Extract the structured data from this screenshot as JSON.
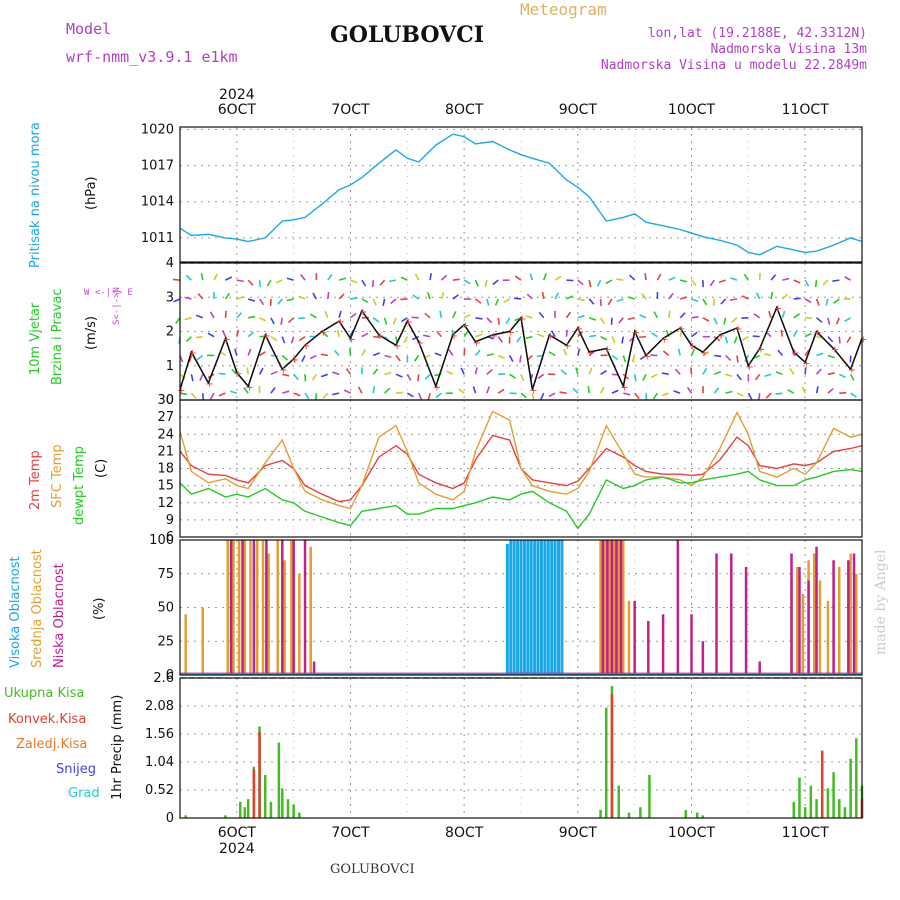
{
  "header": {
    "title": "GOLUBOVCI",
    "model_label": "Model",
    "model_name": "wrf-nmm_v3.9.1 e1km",
    "meteogram": "Meteogram",
    "lonlat": "lon,lat (19.2188E, 42.3312N)",
    "elevation": "Nadmorska Visina 13m",
    "model_elevation": "Nadmorska Visina u modelu 22.2849m",
    "footer": "GOLUBOVCI",
    "credit": "made by Angel"
  },
  "colors": {
    "pressure": "#1aa7e8",
    "wind_label": "#22cc22",
    "dir_legend": "#cc44cc",
    "temp2m": "#e84040",
    "sfc": "#e0a030",
    "dewpt": "#22cc22",
    "cloud_high": "#1aa7e8",
    "cloud_mid": "#e0a030",
    "cloud_low": "#c0208c",
    "precip_total": "#44bb22",
    "precip_conv": "#e04030",
    "precip_frz": "#ee7722",
    "precip_snow": "#4040ee",
    "precip_grad": "#22cccc"
  },
  "chart_data": [
    {
      "type": "line",
      "panel": "pressure",
      "ylabel_lines": [
        "Pritisak na nivou mora",
        "(hPa)"
      ],
      "ylim": [
        1009,
        1020.2
      ],
      "yticks": [
        1011,
        1014,
        1017,
        1020
      ],
      "series": [
        {
          "x": [
            5.5,
            5.6,
            5.75,
            5.9,
            6.0,
            6.1,
            6.25,
            6.4,
            6.5,
            6.6,
            6.75,
            6.9,
            7.0,
            7.1,
            7.25,
            7.4,
            7.5,
            7.6,
            7.75,
            7.9,
            8.0,
            8.1,
            8.25,
            8.4,
            8.5,
            8.6,
            8.75,
            8.9,
            9.0,
            9.1,
            9.25,
            9.4,
            9.5,
            9.6,
            9.75,
            9.9,
            10.0,
            10.1,
            10.25,
            10.4,
            10.5,
            10.6,
            10.75,
            10.9,
            11.0,
            11.1,
            11.25,
            11.4,
            11.5
          ],
          "values": [
            1011.8,
            1011.2,
            1011.3,
            1011.0,
            1010.9,
            1010.7,
            1011.0,
            1012.4,
            1012.5,
            1012.7,
            1013.8,
            1015.0,
            1015.4,
            1016.0,
            1017.2,
            1018.3,
            1017.6,
            1017.3,
            1018.7,
            1019.6,
            1019.4,
            1018.8,
            1019.0,
            1018.3,
            1017.9,
            1017.6,
            1017.2,
            1015.8,
            1015.2,
            1014.4,
            1012.4,
            1012.7,
            1013.0,
            1012.3,
            1012.0,
            1011.7,
            1011.4,
            1011.1,
            1010.8,
            1010.4,
            1009.8,
            1009.6,
            1010.3,
            1010.0,
            1009.8,
            1009.9,
            1010.4,
            1011.0,
            1010.7
          ]
        }
      ]
    },
    {
      "type": "line",
      "panel": "wind",
      "ylabel_lines": [
        "10m Vjetar",
        "Brzina i Pravac",
        "(m/s)"
      ],
      "dir_legend": "W <-|-> E",
      "dir_legend_v": "S<-|->N",
      "ylim": [
        0,
        4
      ],
      "yticks": [
        0,
        1,
        2,
        3,
        4
      ],
      "series": [
        {
          "x": [
            5.5,
            5.6,
            5.75,
            5.9,
            6.0,
            6.1,
            6.25,
            6.4,
            6.5,
            6.6,
            6.75,
            6.9,
            7.0,
            7.1,
            7.25,
            7.4,
            7.5,
            7.6,
            7.75,
            7.9,
            8.0,
            8.1,
            8.25,
            8.4,
            8.5,
            8.6,
            8.75,
            8.9,
            9.0,
            9.1,
            9.25,
            9.4,
            9.5,
            9.6,
            9.75,
            9.9,
            10.0,
            10.1,
            10.25,
            10.4,
            10.5,
            10.6,
            10.75,
            10.9,
            11.0,
            11.1,
            11.25,
            11.4,
            11.5
          ],
          "values": [
            0.3,
            1.4,
            0.5,
            1.8,
            0.8,
            0.4,
            1.9,
            0.9,
            1.2,
            1.6,
            2.0,
            2.3,
            1.8,
            2.6,
            1.9,
            1.6,
            2.3,
            1.7,
            0.4,
            1.9,
            2.2,
            1.7,
            1.9,
            2.0,
            2.4,
            0.3,
            1.9,
            1.6,
            2.1,
            1.4,
            1.5,
            0.4,
            2.0,
            1.3,
            1.8,
            2.1,
            1.6,
            1.4,
            1.9,
            2.1,
            1.0,
            1.5,
            2.7,
            1.4,
            1.1,
            2.0,
            1.5,
            0.9,
            1.8
          ]
        }
      ]
    },
    {
      "type": "line",
      "panel": "temperature",
      "ylabel_lines": [
        "2m Temp",
        "SFC Temp",
        "dewpt Temp",
        "(C)"
      ],
      "ylim": [
        6,
        30
      ],
      "yticks": [
        6,
        9,
        12,
        15,
        18,
        21,
        24,
        27,
        30
      ],
      "series": [
        {
          "name": "2m Temp",
          "x": [
            5.5,
            5.6,
            5.75,
            5.9,
            6.0,
            6.1,
            6.25,
            6.4,
            6.5,
            6.6,
            6.75,
            6.9,
            7.0,
            7.1,
            7.25,
            7.4,
            7.5,
            7.6,
            7.75,
            7.9,
            8.0,
            8.1,
            8.25,
            8.4,
            8.5,
            8.6,
            8.75,
            8.9,
            9.0,
            9.1,
            9.25,
            9.4,
            9.5,
            9.6,
            9.75,
            9.9,
            10.0,
            10.1,
            10.25,
            10.4,
            10.5,
            10.6,
            10.75,
            10.9,
            11.0,
            11.1,
            11.25,
            11.4,
            11.5
          ],
          "values": [
            21.0,
            18.5,
            17.0,
            16.8,
            16.0,
            15.5,
            18.5,
            19.4,
            18.0,
            15.0,
            13.5,
            12.2,
            12.5,
            15.0,
            20.0,
            22.0,
            20.5,
            17.0,
            15.5,
            14.5,
            15.5,
            19.5,
            23.8,
            23.0,
            18.0,
            16.0,
            15.5,
            15.0,
            15.8,
            18.0,
            21.5,
            20.0,
            18.5,
            17.5,
            17.0,
            17.0,
            16.8,
            17.0,
            19.5,
            23.5,
            22.0,
            18.5,
            18.0,
            18.8,
            18.5,
            19.0,
            21.0,
            21.5,
            22.0
          ]
        },
        {
          "name": "SFC Temp",
          "x": [
            5.5,
            5.6,
            5.75,
            5.9,
            6.0,
            6.1,
            6.25,
            6.4,
            6.5,
            6.6,
            6.75,
            6.9,
            7.0,
            7.1,
            7.25,
            7.4,
            7.5,
            7.6,
            7.75,
            7.9,
            8.0,
            8.1,
            8.25,
            8.4,
            8.5,
            8.6,
            8.75,
            8.9,
            9.0,
            9.1,
            9.25,
            9.4,
            9.5,
            9.6,
            9.75,
            9.9,
            10.0,
            10.1,
            10.25,
            10.4,
            10.5,
            10.6,
            10.75,
            10.9,
            11.0,
            11.1,
            11.25,
            11.4,
            11.5
          ],
          "values": [
            24.5,
            17.5,
            15.5,
            16.2,
            15.0,
            14.5,
            19.0,
            23.0,
            18.0,
            14.0,
            12.5,
            11.5,
            11.0,
            15.0,
            23.5,
            25.5,
            21.0,
            15.5,
            13.5,
            12.5,
            14.0,
            21.0,
            28.0,
            26.5,
            18.0,
            15.0,
            14.0,
            13.5,
            14.5,
            17.5,
            25.5,
            20.5,
            17.0,
            16.5,
            16.5,
            16.0,
            15.0,
            16.5,
            21.5,
            27.8,
            24.0,
            17.5,
            16.5,
            18.0,
            17.0,
            19.0,
            25.0,
            23.5,
            24.0
          ]
        },
        {
          "name": "dewpt Temp",
          "x": [
            5.5,
            5.6,
            5.75,
            5.9,
            6.0,
            6.1,
            6.25,
            6.4,
            6.5,
            6.6,
            6.75,
            6.9,
            7.0,
            7.1,
            7.25,
            7.4,
            7.5,
            7.6,
            7.75,
            7.9,
            8.0,
            8.1,
            8.25,
            8.4,
            8.5,
            8.6,
            8.75,
            8.9,
            9.0,
            9.1,
            9.25,
            9.4,
            9.5,
            9.6,
            9.75,
            9.9,
            10.0,
            10.1,
            10.25,
            10.4,
            10.5,
            10.6,
            10.75,
            10.9,
            11.0,
            11.1,
            11.25,
            11.4,
            11.5
          ],
          "values": [
            15.5,
            13.5,
            14.5,
            13.0,
            13.5,
            13.0,
            14.5,
            12.5,
            12.0,
            10.5,
            9.5,
            8.5,
            8.0,
            10.5,
            11.0,
            11.5,
            10.0,
            10.0,
            11.0,
            11.0,
            11.5,
            12.0,
            13.0,
            12.5,
            13.5,
            14.0,
            12.0,
            10.5,
            7.5,
            10.0,
            16.0,
            14.5,
            15.0,
            16.0,
            16.5,
            15.5,
            15.5,
            16.0,
            16.5,
            17.0,
            17.5,
            16.0,
            15.0,
            15.0,
            16.0,
            16.5,
            17.5,
            17.8,
            17.5
          ]
        }
      ]
    },
    {
      "type": "bar",
      "panel": "clouds",
      "ylabel_lines": [
        "Visoka Oblacnost",
        "Srednja Oblacnost",
        "Niska Oblacnost",
        "(%)"
      ],
      "ylim": [
        0,
        100
      ],
      "yticks": [
        0,
        25,
        50,
        75,
        100
      ],
      "series": [
        {
          "name": "Visoka Oblacnost",
          "x": [
            8.38,
            8.41,
            8.44,
            8.47,
            8.5,
            8.53,
            8.56,
            8.59,
            8.62,
            8.65,
            8.68,
            8.71,
            8.74,
            8.77,
            8.8,
            8.83,
            8.86,
            9.26,
            9.29,
            9.32,
            9.35
          ],
          "values": [
            97,
            100,
            100,
            100,
            100,
            100,
            100,
            100,
            100,
            100,
            100,
            100,
            100,
            100,
            100,
            100,
            100,
            100,
            100,
            100,
            100
          ]
        },
        {
          "name": "Srednja Oblacnost",
          "x": [
            5.55,
            5.7,
            5.92,
            5.97,
            6.02,
            6.07,
            6.12,
            6.18,
            6.23,
            6.28,
            6.36,
            6.42,
            6.48,
            6.55,
            6.65,
            9.2,
            9.24,
            9.28,
            9.32,
            9.36,
            9.4,
            9.45,
            10.88,
            10.93,
            10.98,
            11.03,
            11.08,
            11.13,
            11.2,
            11.3,
            11.4,
            11.45
          ],
          "values": [
            45,
            50,
            100,
            100,
            100,
            100,
            100,
            100,
            100,
            90,
            100,
            85,
            100,
            75,
            95,
            100,
            100,
            100,
            100,
            100,
            100,
            55,
            70,
            80,
            60,
            85,
            90,
            70,
            55,
            80,
            90,
            75
          ]
        },
        {
          "name": "Niska Oblacnost",
          "x": [
            5.95,
            6.05,
            6.15,
            6.26,
            6.4,
            6.5,
            6.6,
            6.68,
            9.22,
            9.26,
            9.3,
            9.34,
            9.38,
            9.5,
            9.62,
            9.75,
            9.88,
            10.0,
            10.1,
            10.22,
            10.35,
            10.48,
            10.6,
            10.88,
            10.95,
            11.03,
            11.1,
            11.25,
            11.38,
            11.43
          ],
          "values": [
            100,
            100,
            100,
            100,
            100,
            100,
            100,
            10,
            100,
            100,
            100,
            100,
            100,
            55,
            40,
            45,
            100,
            45,
            25,
            90,
            90,
            80,
            10,
            90,
            80,
            70,
            95,
            85,
            85,
            90
          ]
        }
      ]
    },
    {
      "type": "bar",
      "panel": "precip",
      "ylabel_lines": [
        "1hr Precip (mm)"
      ],
      "legend": [
        "Ukupna Kisa",
        "Konvek.Kisa",
        "Zaledj.Kisa",
        "Snijeg",
        "Grad"
      ],
      "ylim": [
        0,
        2.6
      ],
      "yticks": [
        0,
        0.52,
        1.04,
        1.56,
        2.08,
        2.6
      ],
      "series": [
        {
          "name": "Ukupna Kisa",
          "x": [
            5.55,
            5.9,
            6.03,
            6.07,
            6.1,
            6.15,
            6.2,
            6.25,
            6.3,
            6.37,
            6.4,
            6.45,
            6.5,
            6.55,
            9.2,
            9.25,
            9.3,
            9.36,
            9.45,
            9.55,
            9.63,
            9.95,
            10.05,
            10.1,
            10.9,
            10.95,
            11.0,
            11.05,
            11.1,
            11.15,
            11.2,
            11.25,
            11.3,
            11.35,
            11.4,
            11.45,
            11.5
          ],
          "values": [
            0.05,
            0.05,
            0.3,
            0.2,
            0.35,
            0.95,
            1.7,
            0.8,
            0.3,
            1.4,
            0.55,
            0.35,
            0.25,
            0.1,
            0.15,
            2.05,
            2.45,
            0.6,
            0.1,
            0.2,
            0.8,
            0.15,
            0.1,
            0.05,
            0.3,
            0.75,
            0.2,
            0.6,
            0.35,
            1.25,
            0.55,
            0.85,
            0.35,
            0.2,
            1.1,
            1.48,
            0.6
          ]
        },
        {
          "name": "Konvek.Kisa",
          "x": [
            6.15,
            6.2,
            9.3,
            11.15,
            11.5
          ],
          "values": [
            0.9,
            1.6,
            2.3,
            1.25,
            0.35
          ]
        }
      ]
    }
  ],
  "axes": {
    "top_ticks": [
      "6OCT",
      "7OCT",
      "8OCT",
      "9OCT",
      "10OCT",
      "11OCT"
    ],
    "top_ticks_x": [
      6,
      7,
      8,
      9,
      10,
      11
    ],
    "year": "2024",
    "xlim": [
      5.5,
      11.5
    ]
  }
}
